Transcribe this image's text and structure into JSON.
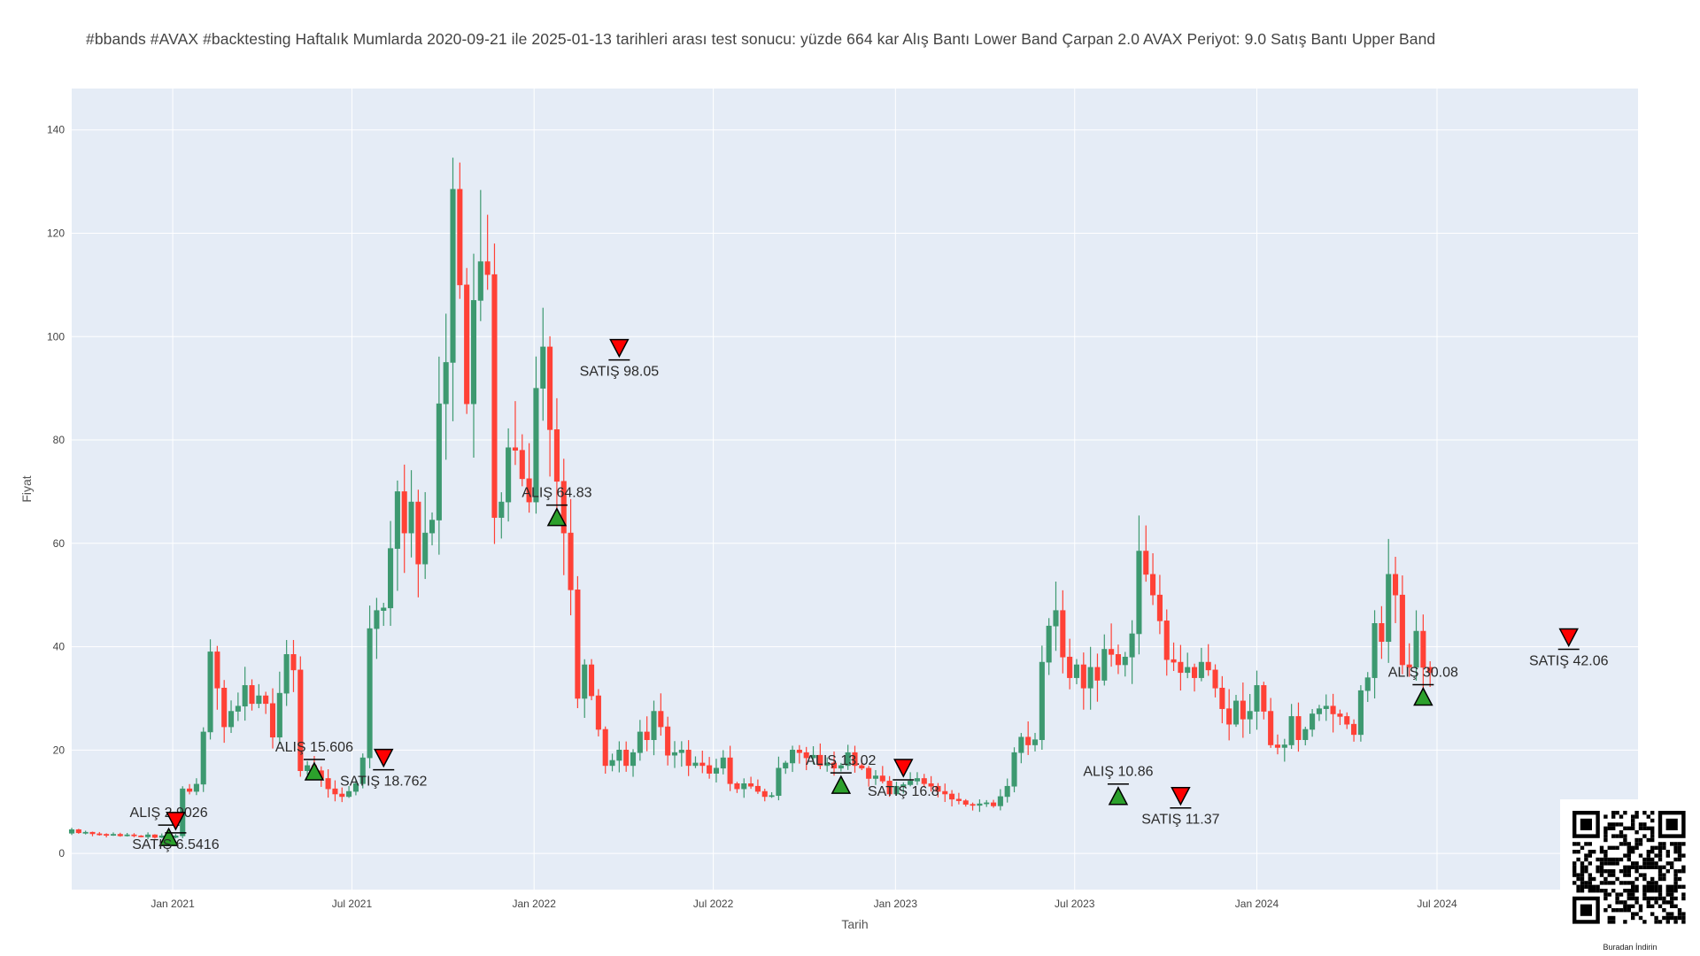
{
  "title": "#bbands #AVAX #backtesting Haftalık Mumlarda 2020-09-21 ile 2025-01-13 tarihleri arası test sonucu: yüzde 664 kar Alış Bantı Lower Band Çarpan 2.0  AVAX Periyot: 9.0 Satış Bantı Upper Band",
  "qr_caption": "Buradan İndirin",
  "colors": {
    "plot_bg": "#e5ecf6",
    "grid": "#ffffff",
    "increasing": "#3d9970",
    "decreasing": "#ff4136",
    "buy_marker": "#2ca02c",
    "sell_marker": "#ff0000"
  },
  "chart_data": {
    "type": "candlestick",
    "xlabel": "Tarih",
    "ylabel": "Fiyat",
    "xlim": [
      "2020-09-21",
      "2025-01-20"
    ],
    "ylim": [
      -7,
      148
    ],
    "grid": true,
    "x_ticks": [
      {
        "date": "2021-01-01",
        "label": "Jan 2021"
      },
      {
        "date": "2021-07-01",
        "label": "Jul 2021"
      },
      {
        "date": "2022-01-01",
        "label": "Jan 2022"
      },
      {
        "date": "2022-07-01",
        "label": "Jul 2022"
      },
      {
        "date": "2023-01-01",
        "label": "Jan 2023"
      },
      {
        "date": "2023-07-01",
        "label": "Jul 2023"
      },
      {
        "date": "2024-01-01",
        "label": "Jan 2024"
      },
      {
        "date": "2024-07-01",
        "label": "Jul 2024"
      }
    ],
    "y_ticks": [
      0,
      20,
      40,
      60,
      80,
      100,
      120,
      140
    ],
    "weekly_close": [
      4.6,
      4.0,
      4.1,
      3.8,
      3.7,
      3.5,
      3.7,
      3.4,
      3.6,
      3.4,
      3.2,
      3.6,
      3.1,
      3.4,
      3.1,
      3.4,
      12.5,
      12.0,
      13.4,
      23.5,
      39.0,
      32.0,
      24.5,
      27.5,
      28.5,
      32.5,
      29.0,
      30.5,
      29.0,
      22.5,
      31.0,
      38.5,
      35.5,
      16.0,
      17.0,
      16.0,
      14.5,
      12.5,
      11.5,
      11.0,
      12.0,
      13.5,
      18.5,
      43.5,
      47.0,
      47.5,
      59.0,
      70.0,
      62.0,
      68.0,
      56.0,
      62.0,
      64.5,
      87.0,
      95.0,
      128.5,
      110.0,
      87.0,
      107.0,
      114.5,
      112.0,
      65.0,
      68.0,
      78.5,
      78.0,
      72.5,
      68.0,
      90.0,
      98.0,
      82.0,
      72.0,
      62.0,
      51.0,
      30.0,
      36.5,
      30.5,
      24.0,
      17.0,
      18.0,
      20.0,
      17.0,
      19.5,
      23.5,
      22.0,
      27.5,
      24.5,
      19.0,
      19.5,
      20.0,
      17.0,
      17.5,
      17.0,
      15.5,
      16.5,
      18.5,
      13.5,
      12.5,
      13.5,
      13.0,
      12.0,
      11.0,
      11.2,
      16.5,
      17.5,
      20.0,
      19.5,
      18.5,
      19.0,
      17.0,
      17.5,
      16.5,
      17.0,
      19.5,
      17.0,
      16.5,
      14.5,
      15.0,
      14.0,
      11.5,
      13.0,
      13.3,
      14.0,
      14.5,
      13.5,
      13.0,
      12.0,
      11.5,
      10.5,
      10.2,
      9.5,
      9.3,
      9.6,
      9.8,
      9.2,
      11.0,
      13.0,
      19.5,
      22.5,
      21.0,
      22.0,
      37.0,
      44.0,
      47.0,
      38.0,
      34.0,
      36.5,
      32.0,
      36.0,
      33.5,
      39.5,
      38.5,
      36.5,
      38.0,
      42.5,
      58.5,
      54.0,
      50.0,
      45.0,
      37.5,
      37.0,
      35.0,
      36.0,
      34.0,
      37.0,
      35.5,
      32.0,
      28.0,
      25.0,
      29.5,
      26.0,
      27.5,
      32.5,
      27.5,
      21.0,
      20.5,
      21.0,
      26.5,
      22.0,
      24.0,
      27.0,
      28.0,
      28.5,
      27.0,
      26.5,
      25.0,
      23.0,
      31.5,
      34.0,
      44.5,
      41.0,
      54.0,
      50.0,
      36.5,
      36.0,
      43.0,
      36.0,
      35.0
    ],
    "trades": [
      {
        "side": "buy",
        "label": "ALIŞ 2.9026",
        "date": "2020-12-28",
        "price": 2.9026
      },
      {
        "side": "sell",
        "label": "SATIŞ 6.5416",
        "date": "2021-01-04",
        "price": 6.5416
      },
      {
        "side": "buy",
        "label": "ALIŞ 15.606",
        "date": "2021-05-24",
        "price": 15.606
      },
      {
        "side": "sell",
        "label": "SATIŞ 18.762",
        "date": "2021-08-02",
        "price": 18.762
      },
      {
        "side": "buy",
        "label": "ALIŞ 64.83",
        "date": "2022-01-24",
        "price": 64.83
      },
      {
        "side": "sell",
        "label": "SATIŞ 98.05",
        "date": "2022-03-28",
        "price": 98.05
      },
      {
        "side": "buy",
        "label": "ALIŞ 13.02",
        "date": "2022-11-07",
        "price": 13.02
      },
      {
        "side": "sell",
        "label": "SATIŞ 16.8",
        "date": "2023-01-09",
        "price": 16.8
      },
      {
        "side": "buy",
        "label": "ALIŞ 10.86",
        "date": "2023-08-14",
        "price": 10.86
      },
      {
        "side": "sell",
        "label": "SATIŞ 11.37",
        "date": "2023-10-16",
        "price": 11.37
      },
      {
        "side": "buy",
        "label": "ALIŞ 30.08",
        "date": "2024-06-17",
        "price": 30.08
      },
      {
        "side": "sell",
        "label": "SATIŞ 42.06",
        "date": "2024-11-11",
        "price": 42.06
      }
    ]
  }
}
